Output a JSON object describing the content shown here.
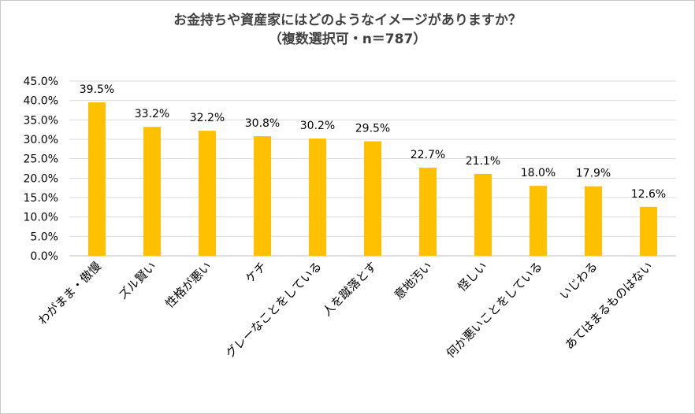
{
  "chart_data": {
    "type": "bar",
    "title": "お金持ちや資産家にはどのようなイメージがありますか？",
    "subtitle": "（複数選択可・n＝787）",
    "categories": [
      "わがまま・傲慢",
      "ズル賢い",
      "性格が悪い",
      "ケチ",
      "グレーなことをしている",
      "人を蹴落とす",
      "意地汚い",
      "怪しい",
      "何か悪いことをしている",
      "いじわる",
      "あてはまるものはない"
    ],
    "values": [
      39.5,
      33.2,
      32.2,
      30.8,
      30.2,
      29.5,
      22.7,
      21.1,
      18.0,
      17.9,
      12.6
    ],
    "data_labels": [
      "39.5%",
      "33.2%",
      "32.2%",
      "30.8%",
      "30.2%",
      "29.5%",
      "22.7%",
      "21.1%",
      "18.0%",
      "17.9%",
      "12.6%"
    ],
    "y_ticks": [
      "0.0%",
      "5.0%",
      "10.0%",
      "15.0%",
      "20.0%",
      "25.0%",
      "30.0%",
      "35.0%",
      "40.0%",
      "45.0%"
    ],
    "ylim": [
      0,
      45
    ],
    "bar_color": "#FFC000",
    "grid": true,
    "legend": "none"
  }
}
